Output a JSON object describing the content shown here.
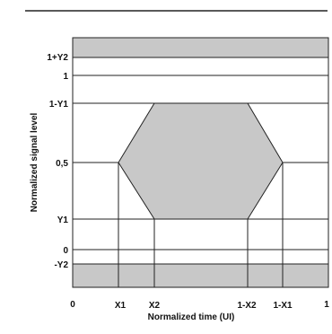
{
  "diagram": {
    "y_axis_label": "Normalized signal level",
    "x_axis_label": "Normalized time (UI)",
    "y_labels": {
      "one_plus_y2": "1+Y2",
      "one": "1",
      "one_minus_y1": "1-Y1",
      "half": "0,5",
      "y1": "Y1",
      "zero": "0",
      "minus_y2": "-Y2"
    },
    "x_labels": {
      "zero": "0",
      "x1": "X1",
      "x2": "X2",
      "one_minus_x2": "1-X2",
      "one_minus_x1": "1-X1",
      "one": "1"
    },
    "colors": {
      "mask_fill": "#c8c8c8",
      "line": "#222222",
      "background": "#ffffff"
    }
  }
}
